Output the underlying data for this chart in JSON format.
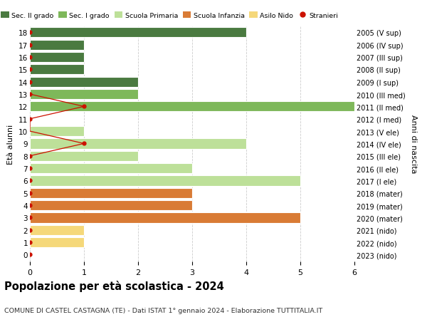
{
  "ages": [
    18,
    17,
    16,
    15,
    14,
    13,
    12,
    11,
    10,
    9,
    8,
    7,
    6,
    5,
    4,
    3,
    2,
    1,
    0
  ],
  "years": [
    "2005 (V sup)",
    "2006 (IV sup)",
    "2007 (III sup)",
    "2008 (II sup)",
    "2009 (I sup)",
    "2010 (III med)",
    "2011 (II med)",
    "2012 (I med)",
    "2013 (V ele)",
    "2014 (IV ele)",
    "2015 (III ele)",
    "2016 (II ele)",
    "2017 (I ele)",
    "2018 (mater)",
    "2019 (mater)",
    "2020 (mater)",
    "2021 (nido)",
    "2022 (nido)",
    "2023 (nido)"
  ],
  "values": [
    4,
    1,
    1,
    1,
    2,
    2,
    6,
    0,
    1,
    4,
    2,
    3,
    5,
    3,
    3,
    5,
    1,
    1,
    0
  ],
  "bar_colors": [
    "#4a7a40",
    "#4a7a40",
    "#4a7a40",
    "#4a7a40",
    "#4a7a40",
    "#7eb85a",
    "#7eb85a",
    "#7eb85a",
    "#bde099",
    "#bde099",
    "#bde099",
    "#bde099",
    "#bde099",
    "#d97b35",
    "#d97b35",
    "#d97b35",
    "#f5d87a",
    "#f5d87a",
    "#f5d87a"
  ],
  "stranieri_line_ages": [
    13,
    12,
    11,
    10,
    9,
    8
  ],
  "stranieri_line_xvals": [
    0,
    1,
    0,
    0,
    1,
    0
  ],
  "stranieri_dot_ages": [
    12,
    9
  ],
  "stranieri_dot_xvals": [
    1,
    1
  ],
  "stranieri_all_ages": [
    18,
    17,
    16,
    15,
    14,
    13,
    11,
    8,
    7,
    6,
    5,
    4,
    3,
    2,
    1,
    0
  ],
  "legend_labels": [
    "Sec. II grado",
    "Sec. I grado",
    "Scuola Primaria",
    "Scuola Infanzia",
    "Asilo Nido",
    "Stranieri"
  ],
  "legend_colors": [
    "#4a7a40",
    "#7eb85a",
    "#bde099",
    "#d97b35",
    "#f5d87a",
    "#cc1100"
  ],
  "ylabel": "Età alunni",
  "ylabel2": "Anni di nascita",
  "title": "Popolazione per età scolastica - 2024",
  "subtitle": "COMUNE DI CASTEL CASTAGNA (TE) - Dati ISTAT 1° gennaio 2024 - Elaborazione TUTTITALIA.IT",
  "xlim": [
    0,
    6
  ],
  "ylim": [
    -0.55,
    18.55
  ],
  "background_color": "#ffffff",
  "grid_color": "#cccccc",
  "bar_height": 0.82
}
